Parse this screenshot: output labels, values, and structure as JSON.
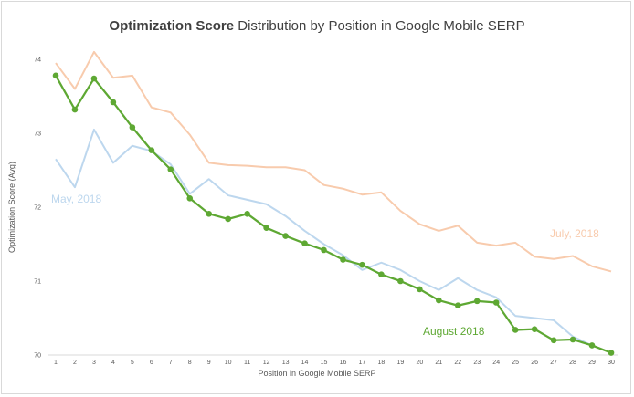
{
  "chart_data": {
    "type": "line",
    "title_bold": "Optimization Score",
    "title_rest": " Distribution by Position in Google Mobile SERP",
    "xlabel": "Position in Google Mobile SERP",
    "ylabel": "Optimization Score (Avg)",
    "x": [
      1,
      2,
      3,
      4,
      5,
      6,
      7,
      8,
      9,
      10,
      11,
      12,
      13,
      14,
      15,
      16,
      17,
      18,
      19,
      20,
      21,
      22,
      23,
      24,
      25,
      26,
      27,
      28,
      29,
      30
    ],
    "ylim": [
      70,
      74
    ],
    "yticks": [
      70,
      71,
      72,
      73,
      74
    ],
    "grid": false,
    "series": [
      {
        "name": "July, 2018",
        "color": "#f8cbad",
        "markers": false,
        "values": [
          73.95,
          73.6,
          74.1,
          73.75,
          73.78,
          73.35,
          73.28,
          72.98,
          72.6,
          72.57,
          72.56,
          72.54,
          72.54,
          72.5,
          72.3,
          72.25,
          72.17,
          72.2,
          71.95,
          71.77,
          71.68,
          71.75,
          71.52,
          71.48,
          71.52,
          71.33,
          71.3,
          71.34,
          71.2,
          71.13
        ]
      },
      {
        "name": "May, 2018",
        "color": "#bdd7ee",
        "markers": false,
        "values": [
          72.65,
          72.27,
          73.05,
          72.6,
          72.83,
          72.76,
          72.58,
          72.18,
          72.38,
          72.16,
          72.1,
          72.04,
          71.88,
          71.68,
          71.5,
          71.35,
          71.15,
          71.25,
          71.15,
          71.0,
          70.88,
          71.04,
          70.88,
          70.78,
          70.53,
          70.5,
          70.47,
          70.25,
          70.13,
          70.03
        ]
      },
      {
        "name": "August 2018",
        "color": "#5ea833",
        "markers": true,
        "values": [
          73.78,
          73.32,
          73.74,
          73.42,
          73.08,
          72.77,
          72.51,
          72.12,
          71.91,
          71.84,
          71.91,
          71.72,
          71.61,
          71.51,
          71.42,
          71.29,
          71.22,
          71.09,
          71.0,
          70.89,
          70.74,
          70.67,
          70.73,
          70.71,
          70.34,
          70.35,
          70.2,
          70.21,
          70.13,
          70.03
        ]
      }
    ]
  }
}
